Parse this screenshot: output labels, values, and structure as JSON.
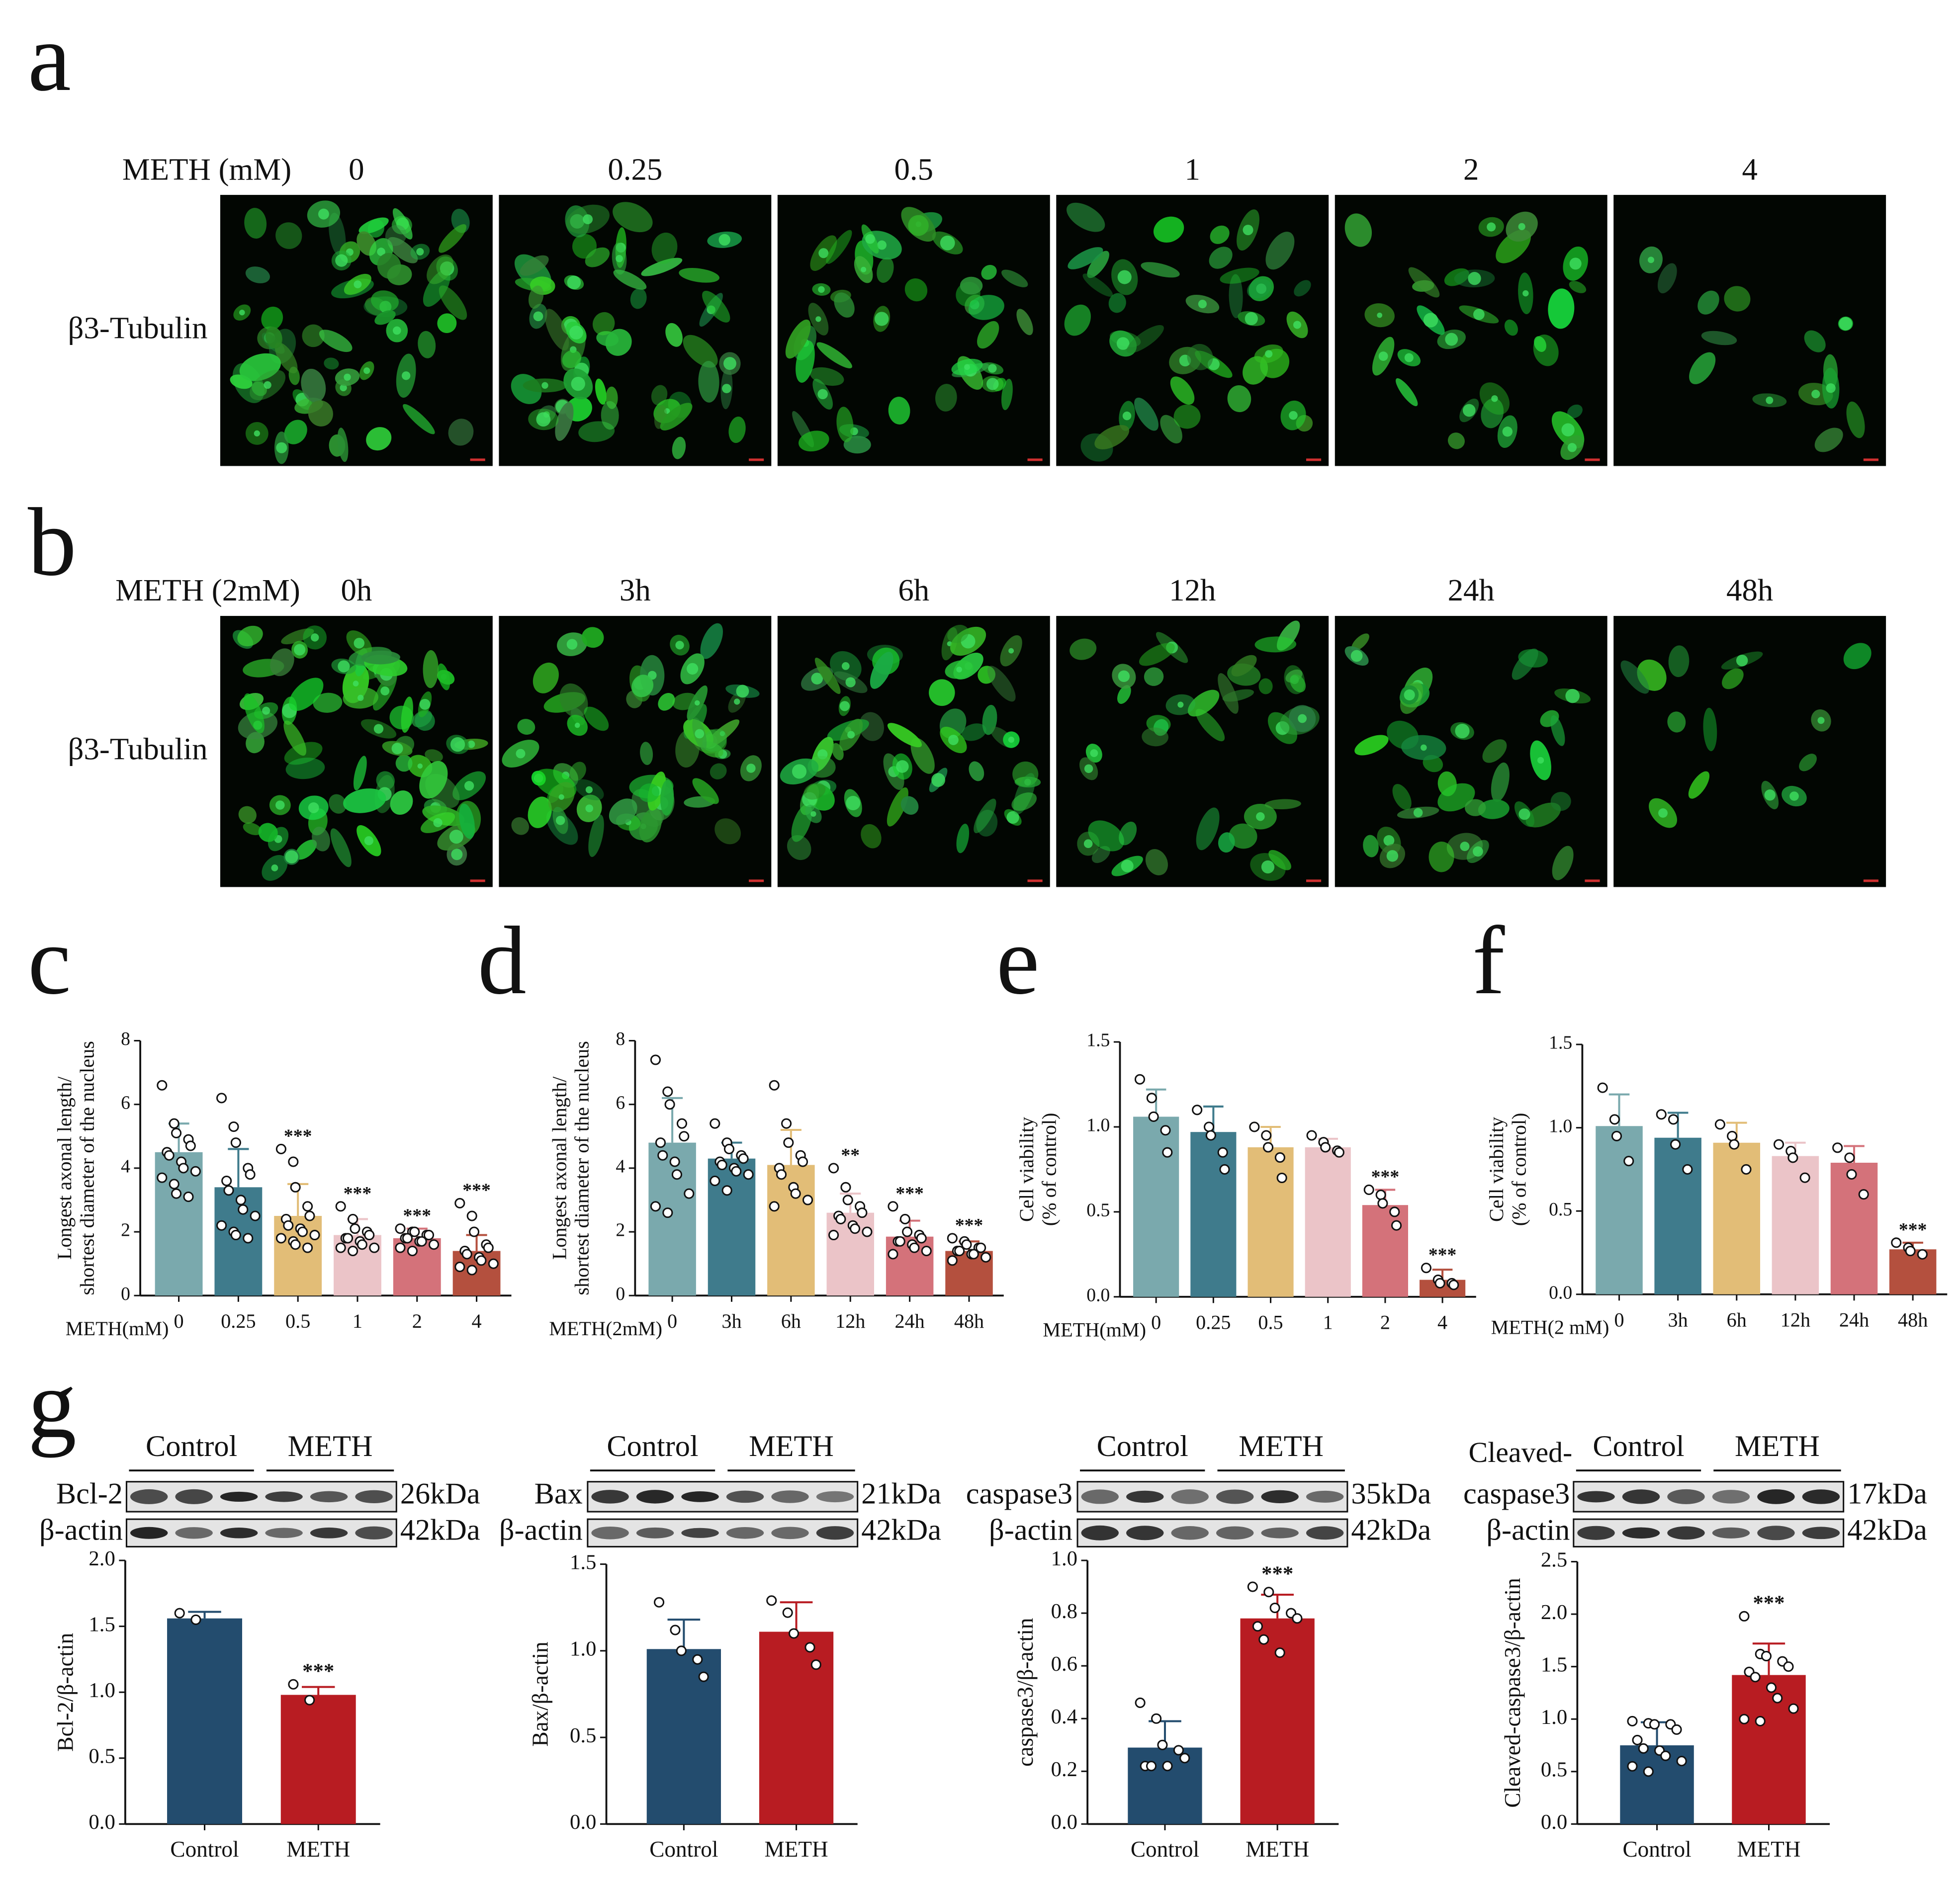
{
  "panels": {
    "a": {
      "letter": "a",
      "header": "METH (mM)",
      "columns": [
        "0",
        "0.25",
        "0.5",
        "1",
        "2",
        "4"
      ],
      "row_label": "β3-Tubulin"
    },
    "b": {
      "letter": "b",
      "header": "METH (2mM)",
      "columns": [
        "0h",
        "3h",
        "6h",
        "12h",
        "24h",
        "48h"
      ],
      "row_label": "β3-Tubulin"
    },
    "g": {
      "letter": "g",
      "blots": [
        {
          "groups": [
            "Control",
            "METH"
          ],
          "rows": [
            {
              "label": "Bcl-2",
              "size": "26kDa"
            },
            {
              "label": "β-actin",
              "size": "42kDa"
            }
          ]
        },
        {
          "groups": [
            "Control",
            "METH"
          ],
          "rows": [
            {
              "label": "Bax",
              "size": "21kDa"
            },
            {
              "label": "β-actin",
              "size": "42kDa"
            }
          ]
        },
        {
          "groups": [
            "Control",
            "METH"
          ],
          "rows": [
            {
              "label": "caspase3",
              "size": "35kDa"
            },
            {
              "label": "β-actin",
              "size": "42kDa"
            }
          ]
        },
        {
          "prefix": "Cleaved-",
          "groups": [
            "Control",
            "METH"
          ],
          "rows": [
            {
              "label": "caspase3",
              "size": "17kDa"
            },
            {
              "label": "β-actin",
              "size": "42kDa"
            }
          ]
        }
      ]
    }
  },
  "chart_data": [
    {
      "type": "bar",
      "letter": "c",
      "ylabel": [
        "Longest axonal length/",
        "shortest diameter of the nucleus"
      ],
      "xprefix": "METH(mM)",
      "categories": [
        "0",
        "0.25",
        "0.5",
        "1",
        "2",
        "4"
      ],
      "values": [
        4.5,
        3.4,
        2.5,
        1.9,
        1.8,
        1.4
      ],
      "errors": [
        0.9,
        1.2,
        1.0,
        0.5,
        0.3,
        0.5
      ],
      "stars": [
        null,
        null,
        "***",
        "***",
        "***",
        "***"
      ],
      "colors": [
        "#7aa9ad",
        "#3f7b8c",
        "#e2bd77",
        "#ebc4c8",
        "#d4727a",
        "#b4503e"
      ],
      "points": [
        [
          6.6,
          5.4,
          5.1,
          4.9,
          4.7,
          4.5,
          4.4,
          4.2,
          4.0,
          3.9,
          3.7,
          3.5,
          3.2,
          3.1
        ],
        [
          6.2,
          5.3,
          4.8,
          4.0,
          3.8,
          3.6,
          3.3,
          3.0,
          2.7,
          2.5,
          2.2,
          2.0,
          1.9,
          1.8
        ],
        [
          4.6,
          4.2,
          3.4,
          2.8,
          2.5,
          2.4,
          2.2,
          2.1,
          2.0,
          1.9,
          1.8,
          1.7,
          1.6,
          1.5
        ],
        [
          2.8,
          2.4,
          2.1,
          2.0,
          1.9,
          1.8,
          1.8,
          1.7,
          1.6,
          1.5,
          1.5,
          1.4
        ],
        [
          2.1,
          2.0,
          2.0,
          1.9,
          1.9,
          1.8,
          1.8,
          1.7,
          1.7,
          1.6,
          1.5,
          1.4
        ],
        [
          2.9,
          2.5,
          2.0,
          1.6,
          1.5,
          1.4,
          1.3,
          1.2,
          1.1,
          1.0,
          0.9,
          0.8
        ]
      ],
      "ylim": [
        0,
        8
      ],
      "yticks": [
        0,
        2,
        4,
        6,
        8
      ]
    },
    {
      "type": "bar",
      "letter": "d",
      "ylabel": [
        "Longest axonal length/",
        "shortest diameter of the nucleus"
      ],
      "xprefix": "METH(2mM)",
      "categories": [
        "0",
        "3h",
        "6h",
        "12h",
        "24h",
        "48h"
      ],
      "values": [
        4.8,
        4.3,
        4.1,
        2.6,
        1.85,
        1.4
      ],
      "errors": [
        1.4,
        0.5,
        1.1,
        0.6,
        0.5,
        0.3
      ],
      "stars": [
        null,
        null,
        null,
        "**",
        "***",
        "***"
      ],
      "colors": [
        "#7aa9ad",
        "#3f7b8c",
        "#e2bd77",
        "#ebc4c8",
        "#d4727a",
        "#b4503e"
      ],
      "points": [
        [
          7.4,
          6.4,
          6.0,
          5.4,
          5.0,
          4.8,
          4.4,
          4.2,
          3.8,
          3.2,
          2.8,
          2.6
        ],
        [
          5.4,
          4.8,
          4.6,
          4.4,
          4.3,
          4.2,
          4.1,
          4.0,
          3.9,
          3.8,
          3.6,
          3.3
        ],
        [
          6.6,
          5.4,
          4.8,
          4.4,
          4.2,
          4.0,
          3.8,
          3.4,
          3.2,
          3.0,
          2.8
        ],
        [
          4.0,
          3.4,
          3.0,
          2.8,
          2.6,
          2.5,
          2.4,
          2.2,
          2.1,
          2.0,
          1.9
        ],
        [
          2.8,
          2.4,
          2.0,
          1.9,
          1.8,
          1.7,
          1.7,
          1.6,
          1.5,
          1.4,
          1.3
        ],
        [
          1.8,
          1.7,
          1.6,
          1.5,
          1.5,
          1.4,
          1.4,
          1.3,
          1.3,
          1.2,
          1.1
        ]
      ],
      "ylim": [
        0,
        8
      ],
      "yticks": [
        0,
        2,
        4,
        6,
        8
      ]
    },
    {
      "type": "bar",
      "letter": "e",
      "ylabel": [
        "Cell viability",
        "(% of control)"
      ],
      "xprefix": "METH(mM)",
      "categories": [
        "0",
        "0.25",
        "0.5",
        "1",
        "2",
        "4"
      ],
      "values": [
        1.06,
        0.97,
        0.88,
        0.88,
        0.54,
        0.1
      ],
      "errors": [
        0.16,
        0.15,
        0.12,
        0.05,
        0.09,
        0.06
      ],
      "stars": [
        null,
        null,
        null,
        null,
        "***",
        "***"
      ],
      "colors": [
        "#7aa9ad",
        "#3f7b8c",
        "#e2bd77",
        "#ebc4c8",
        "#d4727a",
        "#b4503e"
      ],
      "points": [
        [
          1.28,
          1.17,
          1.06,
          0.98,
          0.85
        ],
        [
          1.1,
          1.0,
          0.95,
          0.85,
          0.75
        ],
        [
          1.0,
          0.95,
          0.88,
          0.82,
          0.7
        ],
        [
          0.95,
          0.91,
          0.88,
          0.86,
          0.85
        ],
        [
          0.63,
          0.6,
          0.55,
          0.5,
          0.42
        ],
        [
          0.17,
          0.1,
          0.08,
          0.08,
          0.07
        ]
      ],
      "ylim": [
        0,
        1.5
      ],
      "yticks": [
        {
          "value": 0,
          "label": "0.0"
        },
        0.5,
        {
          "value": 1,
          "label": "1.0"
        },
        1.5
      ]
    },
    {
      "type": "bar",
      "letter": "f",
      "ylabel": [
        "Cell viability",
        "(% of control)"
      ],
      "xprefix": "METH(2 mM)",
      "categories": [
        "0",
        "3h",
        "6h",
        "12h",
        "24h",
        "48h"
      ],
      "values": [
        1.01,
        0.94,
        0.91,
        0.83,
        0.79,
        0.27
      ],
      "errors": [
        0.19,
        0.15,
        0.12,
        0.08,
        0.1,
        0.04
      ],
      "stars": [
        null,
        null,
        null,
        null,
        null,
        "***"
      ],
      "colors": [
        "#7aa9ad",
        "#3f7b8c",
        "#e2bd77",
        "#ebc4c8",
        "#d4727a",
        "#b4503e"
      ],
      "points": [
        [
          1.24,
          1.05,
          0.95,
          0.8
        ],
        [
          1.08,
          1.05,
          0.9,
          0.75
        ],
        [
          1.02,
          0.95,
          0.9,
          0.75
        ],
        [
          0.9,
          0.86,
          0.82,
          0.7
        ],
        [
          0.88,
          0.82,
          0.72,
          0.6
        ],
        [
          0.31,
          0.28,
          0.26,
          0.24
        ]
      ],
      "ylim": [
        0,
        1.5
      ],
      "yticks": [
        {
          "value": 0,
          "label": "0.0"
        },
        0.5,
        {
          "value": 1,
          "label": "1.0"
        },
        1.5
      ]
    },
    {
      "type": "bar",
      "ylabel": "Bcl-2/β-actin",
      "categories": [
        "Control",
        "METH"
      ],
      "values": [
        1.56,
        0.98
      ],
      "errors": [
        0.05,
        0.06
      ],
      "stars": [
        null,
        "***"
      ],
      "colors": [
        "#234c6e",
        "#b81c22"
      ],
      "points": [
        [
          1.6,
          1.55
        ],
        [
          1.06,
          0.94
        ]
      ],
      "ylim": [
        0,
        2
      ],
      "yticks": [
        {
          "value": 0,
          "label": "0.0"
        },
        0.5,
        {
          "value": 1,
          "label": "1.0"
        },
        1.5,
        {
          "value": 2,
          "label": "2.0"
        }
      ]
    },
    {
      "type": "bar",
      "ylabel": "Bax/β-actin",
      "categories": [
        "Control",
        "METH"
      ],
      "values": [
        1.01,
        1.11
      ],
      "errors": [
        0.17,
        0.17
      ],
      "stars": [
        null,
        null
      ],
      "colors": [
        "#234c6e",
        "#b81c22"
      ],
      "points": [
        [
          1.28,
          1.12,
          1.0,
          0.95,
          0.85
        ],
        [
          1.29,
          1.22,
          1.1,
          1.02,
          0.92
        ]
      ],
      "ylim": [
        0,
        1.5
      ],
      "yticks": [
        {
          "value": 0,
          "label": "0.0"
        },
        0.5,
        {
          "value": 1,
          "label": "1.0"
        },
        1.5
      ]
    },
    {
      "type": "bar",
      "ylabel": "caspase3/β-actin",
      "categories": [
        "Control",
        "METH"
      ],
      "values": [
        0.29,
        0.78
      ],
      "errors": [
        0.1,
        0.09
      ],
      "stars": [
        null,
        "***"
      ],
      "colors": [
        "#234c6e",
        "#b81c22"
      ],
      "points": [
        [
          0.46,
          0.4,
          0.3,
          0.28,
          0.25,
          0.22,
          0.22,
          0.22
        ],
        [
          0.9,
          0.88,
          0.82,
          0.8,
          0.78,
          0.75,
          0.7,
          0.65
        ]
      ],
      "ylim": [
        0,
        1
      ],
      "yticks": [
        {
          "value": 0,
          "label": "0.0"
        },
        0.2,
        0.4,
        0.6,
        0.8,
        {
          "value": 1,
          "label": "1.0"
        }
      ]
    },
    {
      "type": "bar",
      "ylabel": "Cleaved-caspase3/β-actin",
      "categories": [
        "Control",
        "METH"
      ],
      "values": [
        0.75,
        1.42
      ],
      "errors": [
        0.22,
        0.3
      ],
      "stars": [
        null,
        "***"
      ],
      "colors": [
        "#234c6e",
        "#b81c22"
      ],
      "points": [
        [
          0.98,
          0.96,
          0.95,
          0.95,
          0.9,
          0.8,
          0.72,
          0.7,
          0.65,
          0.6,
          0.55,
          0.5
        ],
        [
          1.98,
          1.62,
          1.6,
          1.55,
          1.5,
          1.45,
          1.4,
          1.3,
          1.2,
          1.1,
          1.0,
          0.98
        ]
      ],
      "ylim": [
        0,
        2.5
      ],
      "yticks": [
        {
          "value": 0,
          "label": "0.0"
        },
        0.5,
        {
          "value": 1,
          "label": "1.0"
        },
        1.5,
        {
          "value": 2,
          "label": "2.0"
        },
        2.5
      ]
    }
  ]
}
